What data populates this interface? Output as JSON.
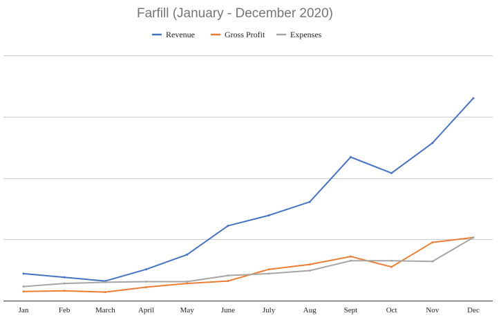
{
  "chart_data": {
    "type": "line",
    "title": "Farfill (January - December 2020)",
    "xlabel": "",
    "ylabel": "",
    "categories": [
      "Jan",
      "Feb",
      "March",
      "April",
      "May",
      "June",
      "July",
      "Aug",
      "Sept",
      "Oct",
      "Nov",
      "Dec"
    ],
    "ylim": [
      0,
      400
    ],
    "y_gridlines": [
      100,
      200,
      300,
      400
    ],
    "y_tick_labels_shown": false,
    "grid": true,
    "legend_position": "top",
    "series": [
      {
        "name": "Revenue",
        "color": "#4472c4",
        "values": [
          44,
          38,
          32,
          51,
          75,
          122,
          139,
          161,
          234,
          208,
          257,
          330
        ]
      },
      {
        "name": "Gross Profit",
        "color": "#ed7d31",
        "values": [
          15,
          16,
          14,
          22,
          28,
          32,
          51,
          59,
          72,
          55,
          95,
          103
        ]
      },
      {
        "name": "Expenses",
        "color": "#a5a5a5",
        "values": [
          23,
          28,
          30,
          31,
          31,
          41,
          44,
          49,
          65,
          65,
          64,
          103
        ]
      }
    ]
  }
}
